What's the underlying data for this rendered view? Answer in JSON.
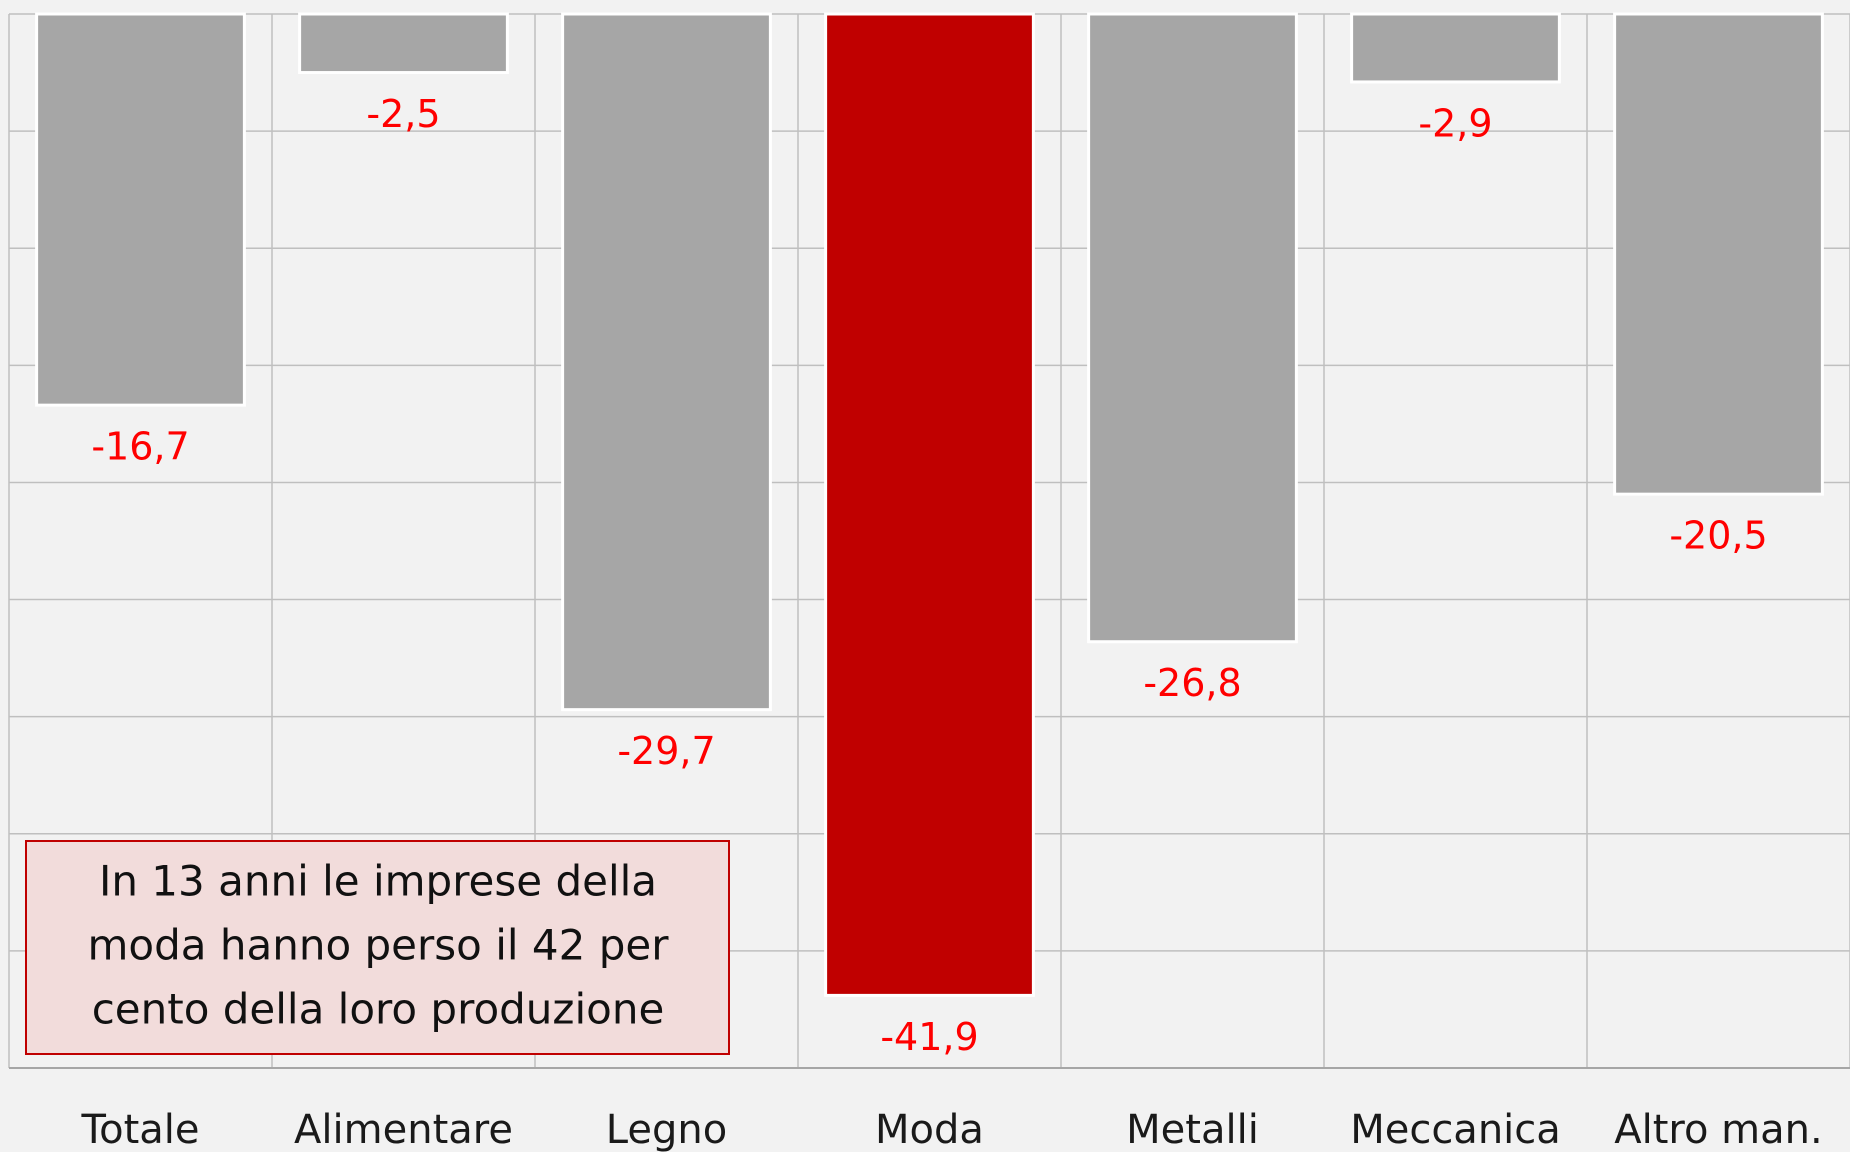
{
  "chart_data": {
    "type": "bar",
    "categories": [
      "Totale",
      "Alimentare",
      "Legno",
      "Moda",
      "Metalli",
      "Meccanica",
      "Altro man."
    ],
    "values": [
      -16.7,
      -2.5,
      -29.7,
      -41.9,
      -26.8,
      -2.9,
      -20.5
    ],
    "value_labels": [
      "-16,7",
      "-2,5",
      "-29,7",
      "-41,9",
      "-26,8",
      "-2,9",
      "-20,5"
    ],
    "colors": [
      "#a6a6a6",
      "#a6a6a6",
      "#a6a6a6",
      "#c00000",
      "#a6a6a6",
      "#a6a6a6",
      "#a6a6a6"
    ],
    "ylim": [
      -45,
      0
    ],
    "yticks": [
      0,
      -5,
      -10,
      -15,
      -20,
      -25,
      -30,
      -35,
      -40,
      -45
    ],
    "grid": true,
    "annotation": [
      "In 13 anni le imprese della",
      "moda hanno perso il 42 per",
      "cento della loro produzione"
    ]
  }
}
